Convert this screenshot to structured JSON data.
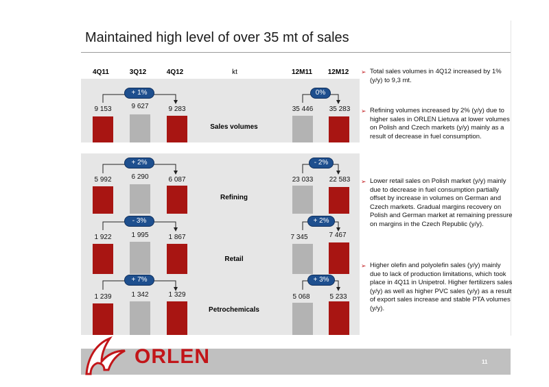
{
  "title": "Maintained high level of over 35 mt of sales",
  "headers": {
    "q1": "4Q11",
    "q2": "3Q12",
    "q3": "4Q12",
    "unit": "kt",
    "y1": "12M11",
    "y2": "12M12"
  },
  "segments": [
    {
      "label": "Sales volumes",
      "quarterly": {
        "values": [
          "9 153",
          "9 627",
          "9 283"
        ],
        "change": "+ 1%"
      },
      "annual": {
        "values": [
          "35 446",
          "35 283"
        ],
        "change": "0%"
      }
    },
    {
      "label": "Refining",
      "quarterly": {
        "values": [
          "5 992",
          "6 290",
          "6 087"
        ],
        "change": "+ 2%"
      },
      "annual": {
        "values": [
          "23 033",
          "22 583"
        ],
        "change": "- 2%"
      }
    },
    {
      "label": "Retail",
      "quarterly": {
        "values": [
          "1 922",
          "1 995",
          "1 867"
        ],
        "change": "- 3%"
      },
      "annual": {
        "values": [
          "7 345",
          "7 467"
        ],
        "change": "+ 2%"
      }
    },
    {
      "label": "Petrochemicals",
      "quarterly": {
        "values": [
          "1 239",
          "1 342",
          "1 329"
        ],
        "change": "+ 7%"
      },
      "annual": {
        "values": [
          "5 068",
          "5 233"
        ],
        "change": "+ 3%"
      }
    }
  ],
  "bullets": [
    "Total sales volumes in 4Q12 increased by 1% (y/y) to 9,3 mt.",
    "Refining volumes increased by 2% (y/y) due to higher sales in ORLEN Lietuva at lower volumes on Polish and Czech markets (y/y) mainly as a result of decrease in fuel consumption.",
    "Lower retail sales on Polish market (y/y) mainly due to decrease in fuel consumption partially offset by increase in volumes on German and Czech markets. Gradual margins recovery on Polish and German market at remaining pressure on margins in the Czech Republic (y/y).",
    "Higher olefin and polyolefin sales (y/y) mainly due to lack of production limitations, which took place in 4Q11 in Unipetrol. Higher fertilizers sales (y/y) as well as higher PVC sales (y/y) as a result of export sales increase and stable PTA volumes (y/y)."
  ],
  "bullet_marker": "➢",
  "logo_text": "ORLEN",
  "page_number": "11",
  "colors": {
    "current_bar": "#a81512",
    "previous_bar": "#b3b3b3",
    "pill": "#1e4f8e",
    "brand": "#c21519"
  }
}
